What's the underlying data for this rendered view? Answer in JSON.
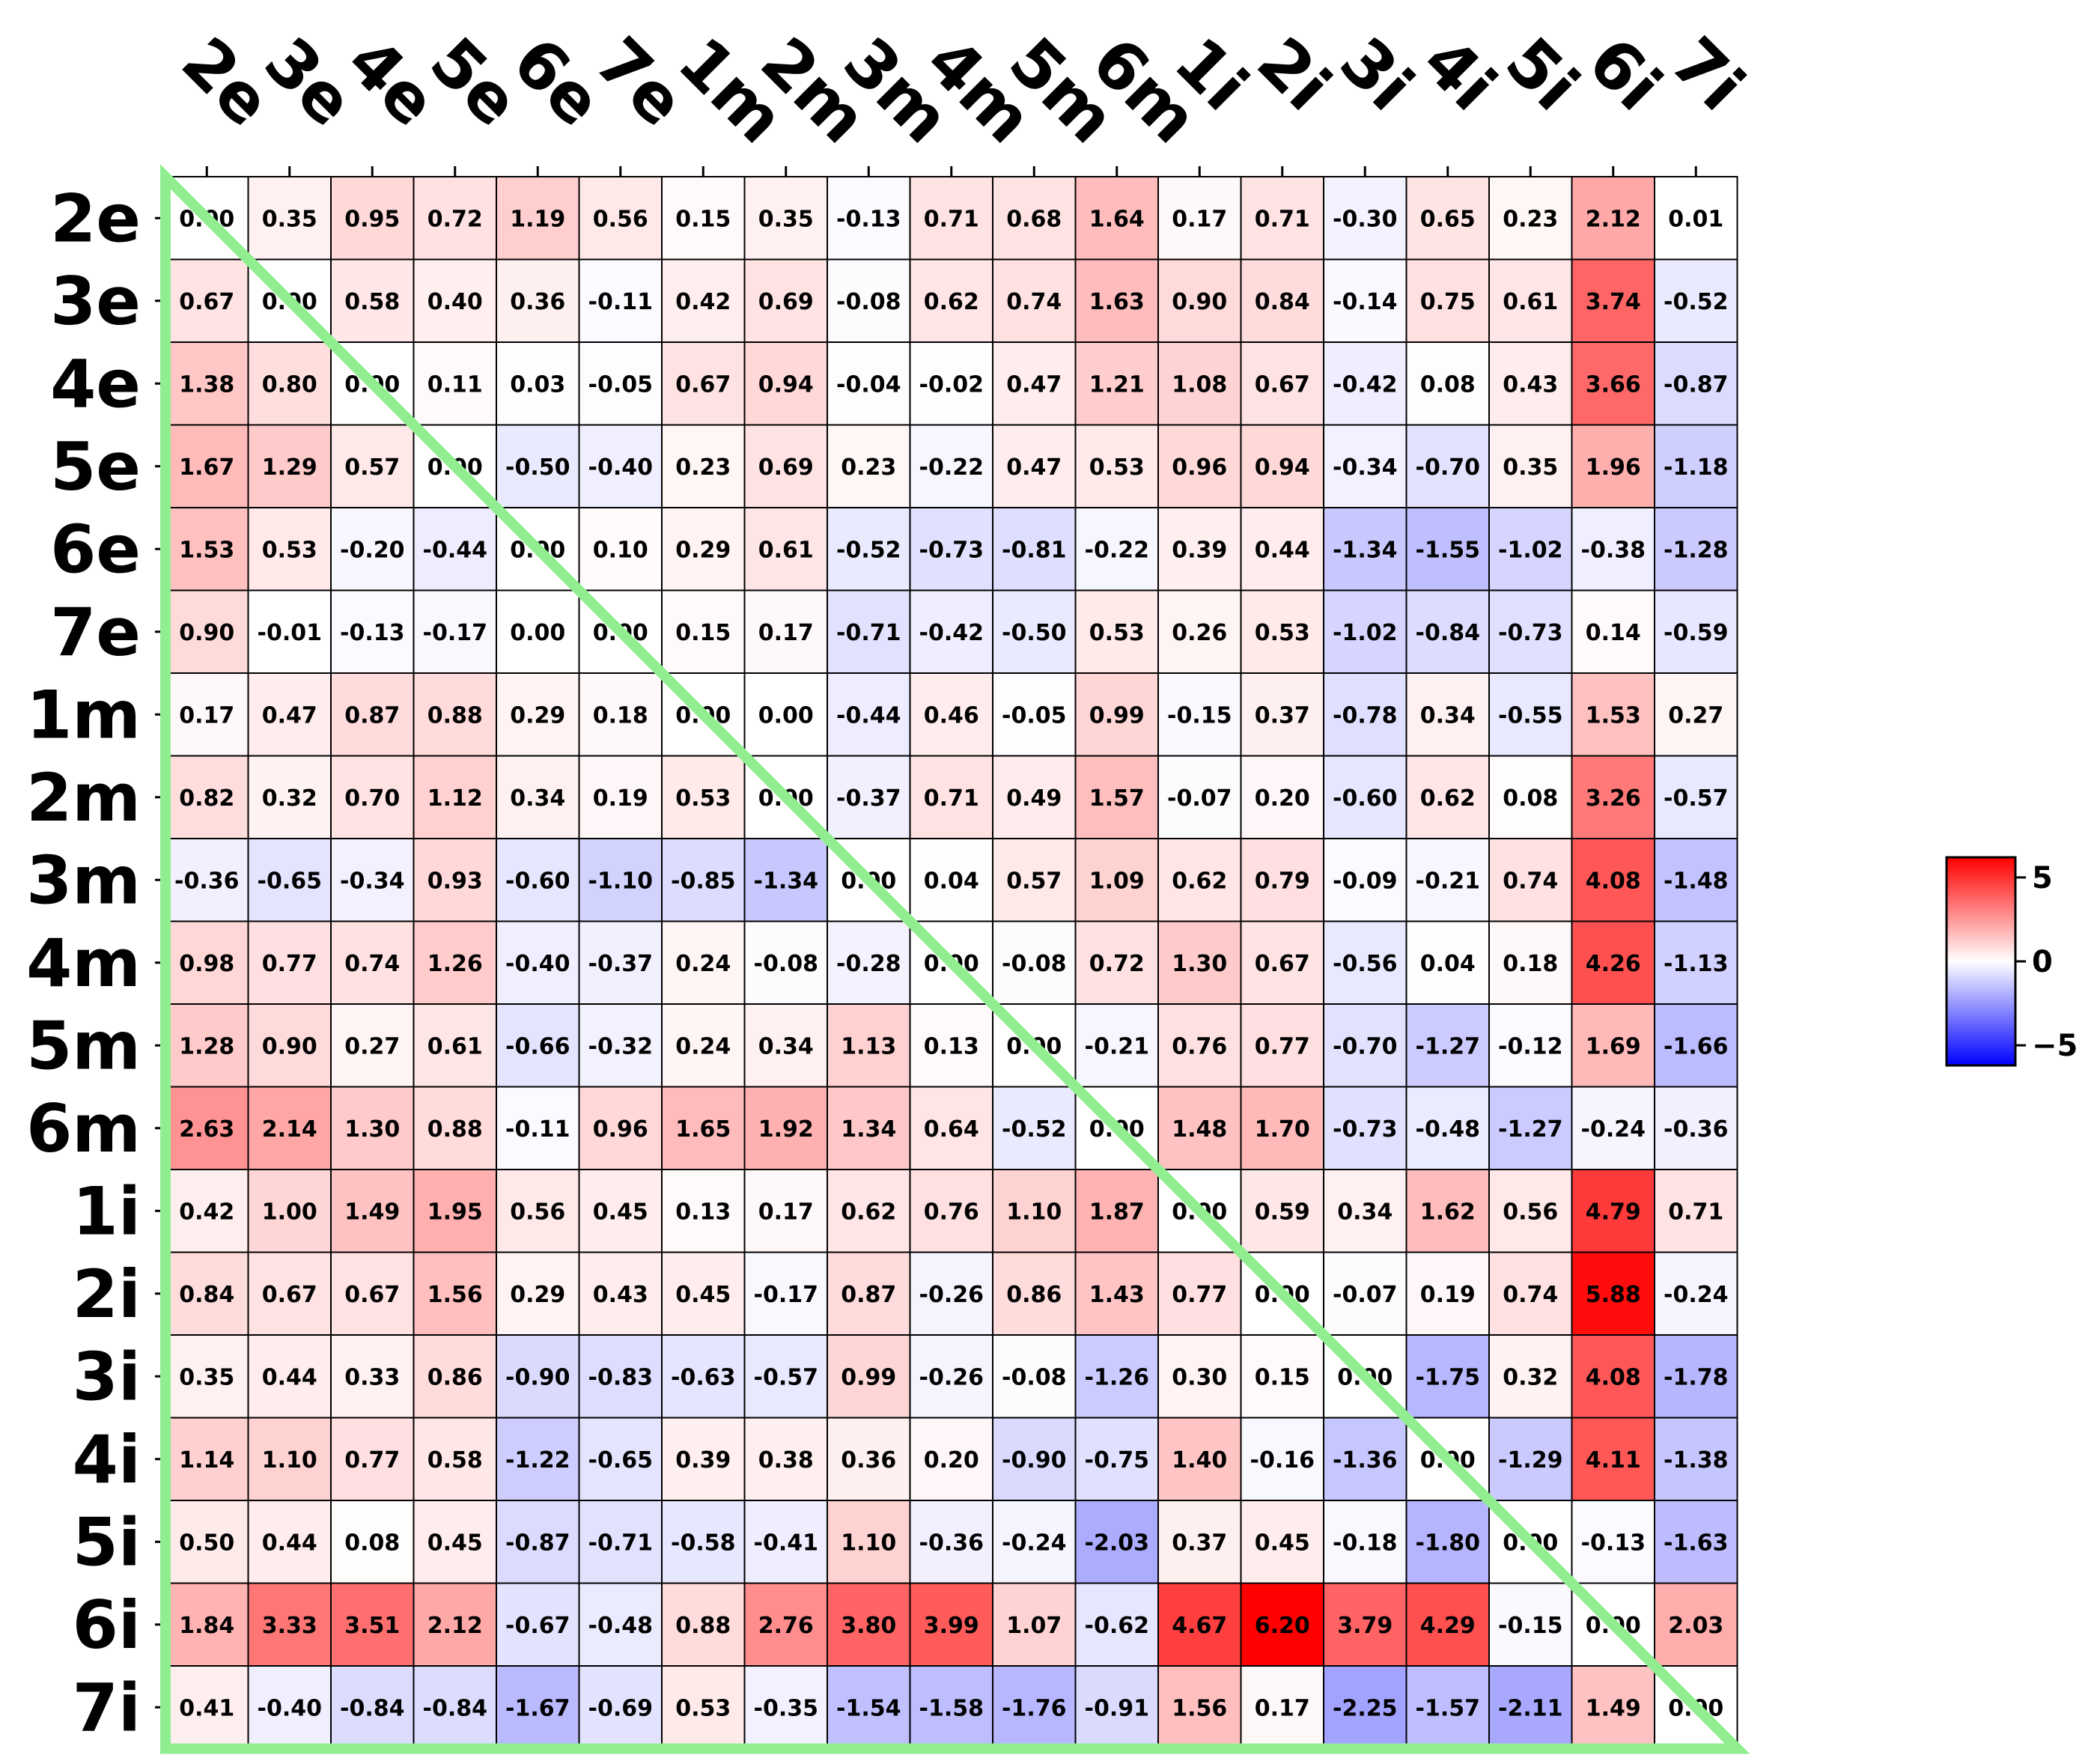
{
  "chart_data": {
    "type": "heatmap",
    "rows": [
      "2e",
      "3e",
      "4e",
      "5e",
      "6e",
      "7e",
      "1m",
      "2m",
      "3m",
      "4m",
      "5m",
      "6m",
      "1i",
      "2i",
      "3i",
      "4i",
      "5i",
      "6i",
      "7i"
    ],
    "columns": [
      "2e",
      "3e",
      "4e",
      "5e",
      "6e",
      "7e",
      "1m",
      "2m",
      "3m",
      "4m",
      "5m",
      "6m",
      "1i",
      "2i",
      "3i",
      "4i",
      "5i",
      "6i",
      "7i"
    ],
    "values": [
      [
        0.0,
        0.35,
        0.95,
        0.72,
        1.19,
        0.56,
        0.15,
        0.35,
        -0.13,
        0.71,
        0.68,
        1.64,
        0.17,
        0.71,
        -0.3,
        0.65,
        0.23,
        2.12,
        0.01
      ],
      [
        0.67,
        0.0,
        0.58,
        0.4,
        0.36,
        -0.11,
        0.42,
        0.69,
        -0.08,
        0.62,
        0.74,
        1.63,
        0.9,
        0.84,
        -0.14,
        0.75,
        0.61,
        3.74,
        -0.52
      ],
      [
        1.38,
        0.8,
        0.0,
        0.11,
        0.03,
        -0.05,
        0.67,
        0.94,
        -0.04,
        -0.02,
        0.47,
        1.21,
        1.08,
        0.67,
        -0.42,
        0.08,
        0.43,
        3.66,
        -0.87
      ],
      [
        1.67,
        1.29,
        0.57,
        0.0,
        -0.5,
        -0.4,
        0.23,
        0.69,
        0.23,
        -0.22,
        0.47,
        0.53,
        0.96,
        0.94,
        -0.34,
        -0.7,
        0.35,
        1.96,
        -1.18
      ],
      [
        1.53,
        0.53,
        -0.2,
        -0.44,
        0.0,
        0.1,
        0.29,
        0.61,
        -0.52,
        -0.73,
        -0.81,
        -0.22,
        0.39,
        0.44,
        -1.34,
        -1.55,
        -1.02,
        -0.38,
        -1.28
      ],
      [
        0.9,
        -0.01,
        -0.13,
        -0.17,
        0.0,
        0.0,
        0.15,
        0.17,
        -0.71,
        -0.42,
        -0.5,
        0.53,
        0.26,
        0.53,
        -1.02,
        -0.84,
        -0.73,
        0.14,
        -0.59
      ],
      [
        0.17,
        0.47,
        0.87,
        0.88,
        0.29,
        0.18,
        0.0,
        0.0,
        -0.44,
        0.46,
        -0.05,
        0.99,
        -0.15,
        0.37,
        -0.78,
        0.34,
        -0.55,
        1.53,
        0.27
      ],
      [
        0.82,
        0.32,
        0.7,
        1.12,
        0.34,
        0.19,
        0.53,
        0.0,
        -0.37,
        0.71,
        0.49,
        1.57,
        -0.07,
        0.2,
        -0.6,
        0.62,
        0.08,
        3.26,
        -0.57
      ],
      [
        -0.36,
        -0.65,
        -0.34,
        0.93,
        -0.6,
        -1.1,
        -0.85,
        -1.34,
        0.0,
        0.04,
        0.57,
        1.09,
        0.62,
        0.79,
        -0.09,
        -0.21,
        0.74,
        4.08,
        -1.48
      ],
      [
        0.98,
        0.77,
        0.74,
        1.26,
        -0.4,
        -0.37,
        0.24,
        -0.08,
        -0.28,
        0.0,
        -0.08,
        0.72,
        1.3,
        0.67,
        -0.56,
        0.04,
        0.18,
        4.26,
        -1.13
      ],
      [
        1.28,
        0.9,
        0.27,
        0.61,
        -0.66,
        -0.32,
        0.24,
        0.34,
        1.13,
        0.13,
        0.0,
        -0.21,
        0.76,
        0.77,
        -0.7,
        -1.27,
        -0.12,
        1.69,
        -1.66
      ],
      [
        2.63,
        2.14,
        1.3,
        0.88,
        -0.11,
        0.96,
        1.65,
        1.92,
        1.34,
        0.64,
        -0.52,
        0.0,
        1.48,
        1.7,
        -0.73,
        -0.48,
        -1.27,
        -0.24,
        -0.36
      ],
      [
        0.42,
        1.0,
        1.49,
        1.95,
        0.56,
        0.45,
        0.13,
        0.17,
        0.62,
        0.76,
        1.1,
        1.87,
        0.0,
        0.59,
        0.34,
        1.62,
        0.56,
        4.79,
        0.71
      ],
      [
        0.84,
        0.67,
        0.67,
        1.56,
        0.29,
        0.43,
        0.45,
        -0.17,
        0.87,
        -0.26,
        0.86,
        1.43,
        0.77,
        0.0,
        -0.07,
        0.19,
        0.74,
        5.88,
        -0.24
      ],
      [
        0.35,
        0.44,
        0.33,
        0.86,
        -0.9,
        -0.83,
        -0.63,
        -0.57,
        0.99,
        -0.26,
        -0.08,
        -1.26,
        0.3,
        0.15,
        0.0,
        -1.75,
        0.32,
        4.08,
        -1.78
      ],
      [
        1.14,
        1.1,
        0.77,
        0.58,
        -1.22,
        -0.65,
        0.39,
        0.38,
        0.36,
        0.2,
        -0.9,
        -0.75,
        1.4,
        -0.16,
        -1.36,
        0.0,
        -1.29,
        4.11,
        -1.38
      ],
      [
        0.5,
        0.44,
        0.08,
        0.45,
        -0.87,
        -0.71,
        -0.58,
        -0.41,
        1.1,
        -0.36,
        -0.24,
        -2.03,
        0.37,
        0.45,
        -0.18,
        -1.8,
        0.0,
        -0.13,
        -1.63
      ],
      [
        1.84,
        3.33,
        3.51,
        2.12,
        -0.67,
        -0.48,
        0.88,
        2.76,
        3.8,
        3.99,
        1.07,
        -0.62,
        4.67,
        6.2,
        3.79,
        4.29,
        -0.15,
        0.0,
        2.03
      ],
      [
        0.41,
        -0.4,
        -0.84,
        -0.84,
        -1.67,
        -0.69,
        0.53,
        -0.35,
        -1.54,
        -1.58,
        -1.76,
        -0.91,
        1.56,
        0.17,
        -2.25,
        -1.57,
        -2.11,
        1.49,
        0.0
      ]
    ],
    "colormap": "bwr",
    "vmin": -6.2,
    "vmax": 6.2,
    "colorbar_ticks": [
      5,
      0,
      -5
    ],
    "colorbar_tick_labels": [
      "5",
      "0",
      "−5"
    ],
    "overlay": {
      "shape": "triangle-outline",
      "color": "#90ee90"
    },
    "title": "",
    "xlabel": "",
    "ylabel": ""
  }
}
